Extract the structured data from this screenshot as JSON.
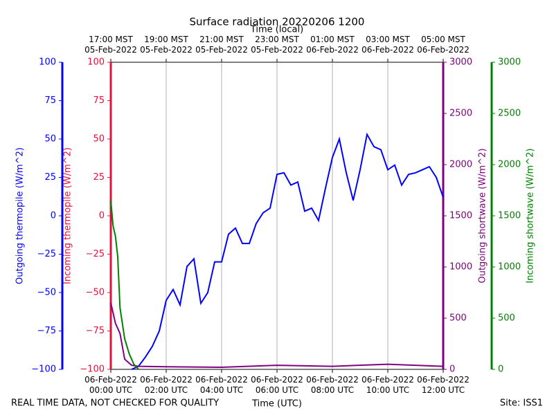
{
  "chart_data": {
    "type": "line",
    "title": "Surface radiation 20220206 1200",
    "top_axis_label": "Time (local)",
    "x_label": "Time (UTC)",
    "footer_left": "REAL TIME DATA, NOT CHECKED FOR QUALITY",
    "footer_right": "Site: ISS1",
    "xlim": [
      "2022-02-06T00:00",
      "2022-02-06T12:00"
    ],
    "xticks": [
      {
        "value": "2022-02-06T00:00",
        "label": "06-Feb-2022\n00:00 UTC"
      },
      {
        "value": "2022-02-06T02:00",
        "label": "06-Feb-2022\n02:00 UTC"
      },
      {
        "value": "2022-02-06T04:00",
        "label": "06-Feb-2022\n04:00 UTC"
      },
      {
        "value": "2022-02-06T06:00",
        "label": "06-Feb-2022\n06:00 UTC"
      },
      {
        "value": "2022-02-06T08:00",
        "label": "06-Feb-2022\n08:00 UTC"
      },
      {
        "value": "2022-02-06T10:00",
        "label": "06-Feb-2022\n10:00 UTC"
      },
      {
        "value": "2022-02-06T12:00",
        "label": "06-Feb-2022\n12:00 UTC"
      }
    ],
    "x2ticks": [
      {
        "value": "2022-02-06T00:00",
        "label": "17:00 MST\n05-Feb-2022"
      },
      {
        "value": "2022-02-06T02:00",
        "label": "19:00 MST\n05-Feb-2022"
      },
      {
        "value": "2022-02-06T04:00",
        "label": "21:00 MST\n05-Feb-2022"
      },
      {
        "value": "2022-02-06T06:00",
        "label": "23:00 MST\n05-Feb-2022"
      },
      {
        "value": "2022-02-06T08:00",
        "label": "01:00 MST\n06-Feb-2022"
      },
      {
        "value": "2022-02-06T10:00",
        "label": "03:00 MST\n06-Feb-2022"
      },
      {
        "value": "2022-02-06T12:00",
        "label": "05:00 MST\n06-Feb-2022"
      }
    ],
    "grid": true,
    "axes": [
      {
        "label": "Outgoing thermopile (W/m^2)",
        "color": "#0000ff",
        "lim": [
          -100,
          100
        ],
        "ticks": [
          {
            "value": -100,
            "label": "−100"
          },
          {
            "value": -75,
            "label": "−75"
          },
          {
            "value": -50,
            "label": "−50"
          },
          {
            "value": -25,
            "label": "−25"
          },
          0,
          25,
          50,
          75,
          100
        ]
      },
      {
        "label": "Incoming thermopile (W/m^2)",
        "color": "#dc143c",
        "lim": [
          -100,
          100
        ],
        "ticks": [
          {
            "value": -100,
            "label": "−100"
          },
          {
            "value": -75,
            "label": "−75"
          },
          {
            "value": -50,
            "label": "−50"
          },
          {
            "value": -25,
            "label": "−25"
          },
          0,
          25,
          50,
          75,
          100
        ]
      },
      {
        "label": "Outgoing shortwave (W/m^2)",
        "color": "#800080",
        "lim": [
          0,
          3000
        ],
        "ticks": [
          0,
          500,
          1000,
          1500,
          2000,
          2500,
          3000
        ]
      },
      {
        "label": "Incoming shortwave (W/m^2)",
        "color": "#008000",
        "lim": [
          0,
          3000
        ],
        "ticks": [
          0,
          500,
          1000,
          1500,
          2000,
          2500,
          3000
        ]
      }
    ],
    "series": [
      {
        "color": "#0000ff",
        "axis": 0,
        "x": [
          "2022-02-06T00:45",
          "2022-02-06T01:00",
          "2022-02-06T01:15",
          "2022-02-06T01:30",
          "2022-02-06T01:45",
          "2022-02-06T02:00",
          "2022-02-06T02:15",
          "2022-02-06T02:30",
          "2022-02-06T02:45",
          "2022-02-06T03:00",
          "2022-02-06T03:15",
          "2022-02-06T03:30",
          "2022-02-06T03:45",
          "2022-02-06T04:00",
          "2022-02-06T04:15",
          "2022-02-06T04:30",
          "2022-02-06T04:45",
          "2022-02-06T05:00",
          "2022-02-06T05:15",
          "2022-02-06T05:30",
          "2022-02-06T05:45",
          "2022-02-06T06:00",
          "2022-02-06T06:15",
          "2022-02-06T06:30",
          "2022-02-06T06:45",
          "2022-02-06T07:00",
          "2022-02-06T07:15",
          "2022-02-06T07:30",
          "2022-02-06T07:45",
          "2022-02-06T08:00",
          "2022-02-06T08:15",
          "2022-02-06T08:30",
          "2022-02-06T08:45",
          "2022-02-06T09:00",
          "2022-02-06T09:15",
          "2022-02-06T09:30",
          "2022-02-06T09:45",
          "2022-02-06T10:00",
          "2022-02-06T10:15",
          "2022-02-06T10:30",
          "2022-02-06T10:45",
          "2022-02-06T11:00",
          "2022-02-06T11:15",
          "2022-02-06T11:30",
          "2022-02-06T11:45",
          "2022-02-06T12:00"
        ],
        "values": [
          -100,
          -98,
          -92,
          -85,
          -75,
          -55,
          -48,
          -58,
          -33,
          -28,
          -57,
          -50,
          -30,
          -30,
          -12,
          -8,
          -18,
          -18,
          -5,
          2,
          5,
          27,
          28,
          20,
          22,
          3,
          5,
          -3,
          18,
          38,
          50,
          28,
          10,
          30,
          53,
          45,
          43,
          30,
          33,
          20,
          27,
          28,
          30,
          32,
          25,
          12
        ]
      },
      {
        "color": "#800080",
        "axis": 2,
        "x": [
          "2022-02-06T00:00",
          "2022-02-06T00:10",
          "2022-02-06T00:20",
          "2022-02-06T00:30",
          "2022-02-06T00:45",
          "2022-02-06T01:00",
          "2022-02-06T02:00",
          "2022-02-06T04:00",
          "2022-02-06T06:00",
          "2022-02-06T08:00",
          "2022-02-06T10:00",
          "2022-02-06T12:00"
        ],
        "values": [
          650,
          450,
          350,
          100,
          40,
          30,
          25,
          20,
          40,
          30,
          50,
          30
        ]
      },
      {
        "color": "#008000",
        "axis": 3,
        "x": [
          "2022-02-06T00:00",
          "2022-02-06T00:05",
          "2022-02-06T00:10",
          "2022-02-06T00:15",
          "2022-02-06T00:20",
          "2022-02-06T00:30",
          "2022-02-06T00:40",
          "2022-02-06T00:50",
          "2022-02-06T01:00"
        ],
        "values": [
          1650,
          1400,
          1300,
          1100,
          600,
          300,
          150,
          50,
          0
        ]
      }
    ]
  }
}
